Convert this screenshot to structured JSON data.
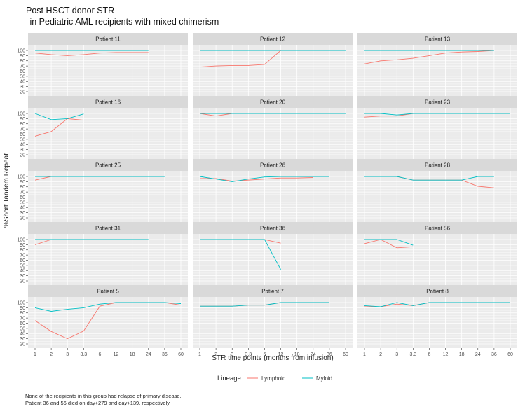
{
  "title_line1": "Post HSCT donor STR",
  "title_line2": " in Pediatric AML recipients with mixed chimerism",
  "caption_line1": "None of the recipients in this group had relapse of primary disease.",
  "caption_line2": "Patient 36 and 56 died on day+279 and day+139, respectively.",
  "colors": {
    "Lymphoid": "#f8766d",
    "Myloid": "#00bfc4",
    "panel_bg": "#ebebeb",
    "strip_bg": "#d9d9d9",
    "grid": "#ffffff"
  },
  "chart_data": {
    "type": "line",
    "xlabel": "STR time points (months from infusion)",
    "ylabel": "%Short Tandem Repeat",
    "x_categories": [
      "1",
      "2",
      "3",
      "3.3",
      "6",
      "12",
      "18",
      "24",
      "36",
      "60"
    ],
    "y_ticks": [
      20,
      30,
      40,
      50,
      60,
      70,
      80,
      90,
      100
    ],
    "ylim": [
      20,
      100
    ],
    "legend": {
      "title": "Lineage",
      "position": "bottom",
      "entries": [
        "Lymphoid",
        "Myloid"
      ]
    },
    "panels": [
      {
        "title": "Patient 11",
        "series": [
          {
            "name": "Lymphoid",
            "x": [
              "1",
              "2",
              "3",
              "3.3",
              "6",
              "12",
              "18",
              "24"
            ],
            "y": [
              95,
              92,
              90,
              92,
              95,
              96,
              96,
              96
            ]
          },
          {
            "name": "Myloid",
            "x": [
              "1",
              "2",
              "3",
              "3.3",
              "6",
              "12",
              "18",
              "24"
            ],
            "y": [
              100,
              100,
              100,
              100,
              100,
              100,
              100,
              100
            ]
          }
        ]
      },
      {
        "title": "Patient 12",
        "series": [
          {
            "name": "Lymphoid",
            "x": [
              "1",
              "2",
              "3",
              "3.3",
              "6",
              "12"
            ],
            "y": [
              68,
              70,
              71,
              71,
              73,
              100
            ]
          },
          {
            "name": "Myloid",
            "x": [
              "1",
              "2",
              "3",
              "3.3",
              "6",
              "12",
              "18",
              "24",
              "36",
              "60"
            ],
            "y": [
              100,
              100,
              100,
              100,
              100,
              100,
              100,
              100,
              100,
              100
            ]
          }
        ]
      },
      {
        "title": "Patient 13",
        "series": [
          {
            "name": "Lymphoid",
            "x": [
              "1",
              "2",
              "3",
              "3.3",
              "6",
              "12",
              "18",
              "24",
              "36"
            ],
            "y": [
              74,
              80,
              82,
              85,
              90,
              95,
              97,
              98,
              100
            ]
          },
          {
            "name": "Myloid",
            "x": [
              "1",
              "2",
              "3",
              "3.3",
              "6",
              "12",
              "18",
              "24",
              "36"
            ],
            "y": [
              100,
              100,
              100,
              100,
              100,
              100,
              100,
              100,
              100
            ]
          }
        ]
      },
      {
        "title": "Patient 16",
        "series": [
          {
            "name": "Lymphoid",
            "x": [
              "1",
              "2",
              "3",
              "3.3"
            ],
            "y": [
              56,
              65,
              90,
              87
            ]
          },
          {
            "name": "Myloid",
            "x": [
              "1",
              "2",
              "3",
              "3.3"
            ],
            "y": [
              100,
              88,
              90,
              99
            ]
          }
        ]
      },
      {
        "title": "Patient 20",
        "series": [
          {
            "name": "Lymphoid",
            "x": [
              "1",
              "2",
              "3"
            ],
            "y": [
              100,
              95,
              100
            ]
          },
          {
            "name": "Myloid",
            "x": [
              "1",
              "2",
              "3",
              "3.3",
              "6",
              "12",
              "18",
              "24",
              "36",
              "60"
            ],
            "y": [
              100,
              100,
              100,
              100,
              100,
              100,
              100,
              100,
              100,
              100
            ]
          }
        ]
      },
      {
        "title": "Patient 23",
        "series": [
          {
            "name": "Lymphoid",
            "x": [
              "1",
              "2",
              "3",
              "3.3"
            ],
            "y": [
              93,
              95,
              95,
              100
            ]
          },
          {
            "name": "Myloid",
            "x": [
              "1",
              "2",
              "3",
              "3.3",
              "6",
              "12",
              "18",
              "24",
              "36",
              "60"
            ],
            "y": [
              100,
              100,
              97,
              100,
              100,
              100,
              100,
              100,
              100,
              100
            ]
          }
        ]
      },
      {
        "title": "Patient 25",
        "series": [
          {
            "name": "Lymphoid",
            "x": [
              "1",
              "2"
            ],
            "y": [
              93,
              100
            ]
          },
          {
            "name": "Myloid",
            "x": [
              "1",
              "2",
              "3",
              "3.3",
              "6",
              "12",
              "18",
              "24",
              "36"
            ],
            "y": [
              100,
              100,
              100,
              100,
              100,
              100,
              100,
              100,
              100
            ]
          }
        ]
      },
      {
        "title": "Patient 26",
        "series": [
          {
            "name": "Lymphoid",
            "x": [
              "1",
              "2",
              "3",
              "3.3",
              "6",
              "12",
              "18",
              "24"
            ],
            "y": [
              96,
              96,
              91,
              93,
              95,
              97,
              97,
              98
            ]
          },
          {
            "name": "Myloid",
            "x": [
              "1",
              "2",
              "3",
              "3.3",
              "6",
              "12",
              "18",
              "24",
              "36"
            ],
            "y": [
              100,
              95,
              90,
              95,
              99,
              100,
              100,
              100,
              100
            ]
          }
        ]
      },
      {
        "title": "Patient 28",
        "series": [
          {
            "name": "Lymphoid",
            "x": [
              "1",
              "2",
              "3",
              "3.3",
              "6",
              "12",
              "18",
              "24",
              "36"
            ],
            "y": [
              100,
              100,
              100,
              93,
              93,
              93,
              93,
              81,
              78
            ]
          },
          {
            "name": "Myloid",
            "x": [
              "1",
              "2",
              "3",
              "3.3",
              "6",
              "12",
              "18",
              "24",
              "36"
            ],
            "y": [
              100,
              100,
              100,
              93,
              93,
              93,
              93,
              100,
              100
            ]
          }
        ]
      },
      {
        "title": "Patient 31",
        "series": [
          {
            "name": "Lymphoid",
            "x": [
              "1",
              "2"
            ],
            "y": [
              90,
              100
            ]
          },
          {
            "name": "Myloid",
            "x": [
              "1",
              "2",
              "3",
              "3.3",
              "6",
              "12",
              "18",
              "24"
            ],
            "y": [
              100,
              100,
              100,
              100,
              100,
              100,
              100,
              100
            ]
          }
        ]
      },
      {
        "title": "Patient 36",
        "series": [
          {
            "name": "Lymphoid",
            "x": [
              "1",
              "2",
              "3",
              "3.3",
              "6",
              "12"
            ],
            "y": [
              100,
              100,
              100,
              100,
              100,
              93
            ]
          },
          {
            "name": "Myloid",
            "x": [
              "1",
              "2",
              "3",
              "3.3",
              "6",
              "12"
            ],
            "y": [
              100,
              100,
              100,
              100,
              100,
              42
            ]
          }
        ]
      },
      {
        "title": "Patient 56",
        "series": [
          {
            "name": "Lymphoid",
            "x": [
              "1",
              "2",
              "3",
              "3.3"
            ],
            "y": [
              92,
              100,
              84,
              86
            ]
          },
          {
            "name": "Myloid",
            "x": [
              "1",
              "2",
              "3",
              "3.3"
            ],
            "y": [
              100,
              100,
              100,
              89
            ]
          }
        ]
      },
      {
        "title": "Patient 5",
        "series": [
          {
            "name": "Lymphoid",
            "x": [
              "1",
              "2",
              "3",
              "3.3",
              "6",
              "12",
              "18",
              "24",
              "36",
              "60"
            ],
            "y": [
              65,
              44,
              30,
              45,
              93,
              100,
              100,
              100,
              100,
              95
            ]
          },
          {
            "name": "Myloid",
            "x": [
              "1",
              "2",
              "3",
              "3.3",
              "6",
              "12",
              "18",
              "24",
              "36",
              "60"
            ],
            "y": [
              90,
              83,
              87,
              90,
              97,
              100,
              100,
              100,
              100,
              98
            ]
          }
        ]
      },
      {
        "title": "Patient 7",
        "series": [
          {
            "name": "Lymphoid",
            "x": [
              "1",
              "2",
              "3",
              "3.3",
              "6",
              "12"
            ],
            "y": [
              93,
              93,
              93,
              95,
              95,
              100
            ]
          },
          {
            "name": "Myloid",
            "x": [
              "1",
              "2",
              "3",
              "3.3",
              "6",
              "12",
              "18",
              "24",
              "36"
            ],
            "y": [
              93,
              93,
              93,
              95,
              95,
              100,
              100,
              100,
              100
            ]
          }
        ]
      },
      {
        "title": "Patient 8",
        "series": [
          {
            "name": "Lymphoid",
            "x": [
              "1",
              "2",
              "3",
              "3.3",
              "6",
              "12",
              "18",
              "24",
              "36",
              "60"
            ],
            "y": [
              92,
              92,
              97,
              94,
              100,
              100,
              100,
              100,
              100,
              100
            ]
          },
          {
            "name": "Myloid",
            "x": [
              "1",
              "2",
              "3",
              "3.3",
              "6",
              "12",
              "18",
              "24",
              "36",
              "60"
            ],
            "y": [
              94,
              92,
              100,
              94,
              100,
              100,
              100,
              100,
              100,
              100
            ]
          }
        ]
      }
    ]
  }
}
